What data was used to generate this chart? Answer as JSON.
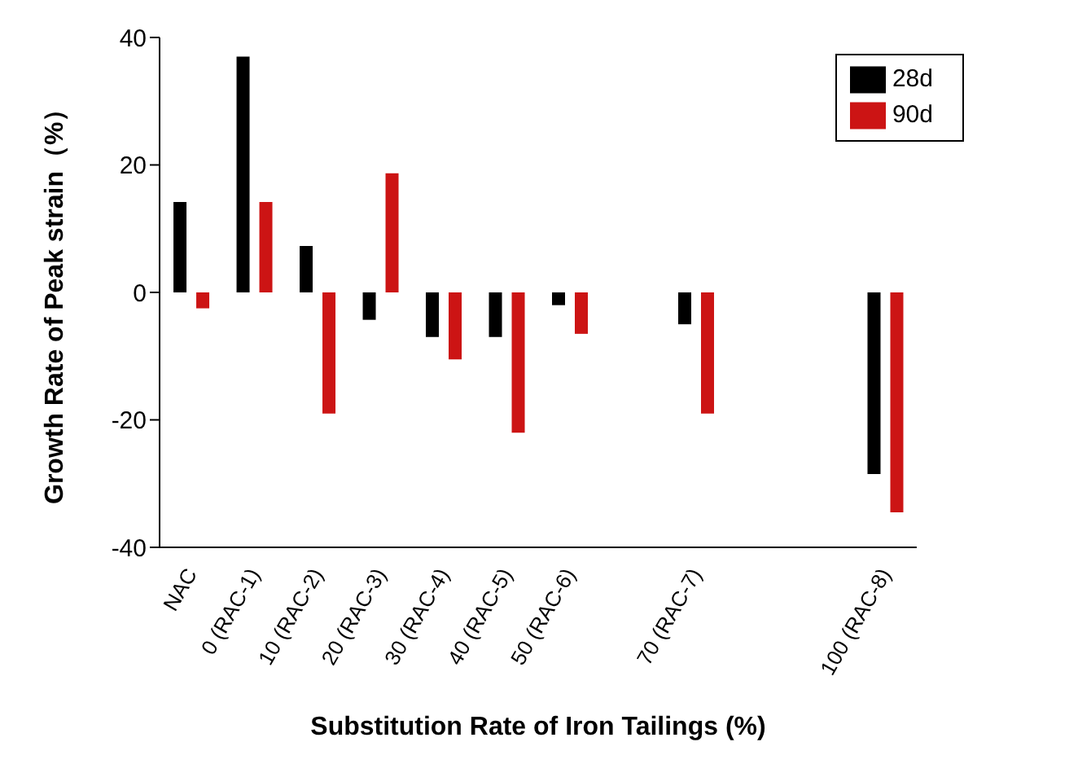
{
  "chart_data": {
    "type": "bar",
    "xlabel": "Substitution Rate of Iron Tailings (%)",
    "ylabel": "Growth Rate of Peak strain（%）",
    "categories": [
      "NAC",
      "0 (RAC-1)",
      "10 (RAC-2)",
      "20 (RAC-3)",
      "30 (RAC-4)",
      "40 (RAC-5)",
      "50 (RAC-6)",
      null,
      "70 (RAC-7)",
      null,
      null,
      "100 (RAC-8)"
    ],
    "series": [
      {
        "name": "28d",
        "color": "#000000",
        "values": [
          14.2,
          37,
          7.3,
          -4.3,
          -7,
          -7,
          -2,
          null,
          -5,
          null,
          null,
          -28.5
        ]
      },
      {
        "name": "90d",
        "color": "#cc1414",
        "values": [
          -2.5,
          14.2,
          -19,
          18.7,
          -10.5,
          -22,
          -6.5,
          null,
          -19,
          null,
          null,
          -34.5
        ]
      }
    ],
    "ylim": [
      -40,
      40
    ],
    "yticks": [
      -40,
      -20,
      0,
      20,
      40
    ],
    "grid": false,
    "legend": "top right"
  }
}
